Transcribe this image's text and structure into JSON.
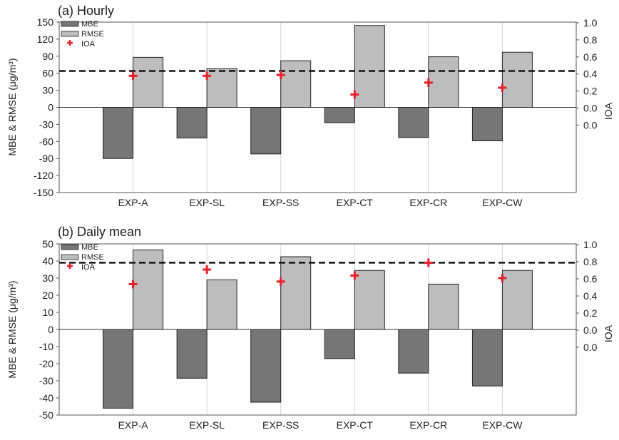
{
  "chart_data": [
    {
      "type": "bar",
      "title": "(a) Hourly",
      "ylabel": "MBE & RMSE (μg/m³)",
      "y2label": "IOA",
      "categories": [
        "EXP-A",
        "EXP-SL",
        "EXP-SS",
        "EXP-CT",
        "EXP-CR",
        "EXP-CW"
      ],
      "ylim": [
        -150,
        150
      ],
      "yticks": [
        -150,
        -120,
        -90,
        -60,
        -30,
        0,
        30,
        60,
        90,
        120,
        150
      ],
      "y2ticks": [
        "1.0",
        "0.8",
        "0.6",
        "0.4",
        "0.2",
        "0.0",
        "0.0"
      ],
      "series": [
        {
          "name": "MBE",
          "kind": "bar",
          "color": "#767676",
          "values": [
            -90,
            -54,
            -82,
            -27,
            -53,
            -59
          ]
        },
        {
          "name": "RMSE",
          "kind": "bar",
          "color": "#bdbdbd",
          "values": [
            88,
            68,
            82,
            144,
            89,
            97
          ]
        },
        {
          "name": "IOA",
          "kind": "marker",
          "color": "#e8202a",
          "values": [
            0.37,
            0.37,
            0.38,
            0.15,
            0.29,
            0.23
          ]
        }
      ],
      "reference_line": {
        "style": "dashed",
        "axis": "left",
        "value": 64
      },
      "legend": "top-left",
      "grid": "vertical"
    },
    {
      "type": "bar",
      "title": "(b) Daily mean",
      "ylabel": "MBE & RMSE (μg/m³)",
      "y2label": "IOA",
      "categories": [
        "EXP-A",
        "EXP-SL",
        "EXP-SS",
        "EXP-CT",
        "EXP-CR",
        "EXP-CW"
      ],
      "ylim": [
        -50,
        50
      ],
      "yticks": [
        -50,
        -40,
        -30,
        -20,
        -10,
        0,
        10,
        20,
        30,
        40,
        50
      ],
      "y2ticks": [
        "1.0",
        "0.8",
        "0.6",
        "0.4",
        "0.2",
        "0.0",
        "0.0"
      ],
      "series": [
        {
          "name": "MBE",
          "kind": "bar",
          "color": "#767676",
          "values": [
            -46,
            -28.5,
            -42.5,
            -17,
            -25.5,
            -33
          ]
        },
        {
          "name": "RMSE",
          "kind": "bar",
          "color": "#bdbdbd",
          "values": [
            46.5,
            29,
            42.5,
            34.5,
            26.5,
            34.5
          ]
        },
        {
          "name": "IOA",
          "kind": "marker",
          "color": "#e8202a",
          "values": [
            0.53,
            0.7,
            0.56,
            0.63,
            0.78,
            0.6
          ]
        }
      ],
      "reference_line": {
        "style": "dashed",
        "axis": "left",
        "value": 39
      },
      "legend": "top-left",
      "grid": "vertical"
    }
  ]
}
